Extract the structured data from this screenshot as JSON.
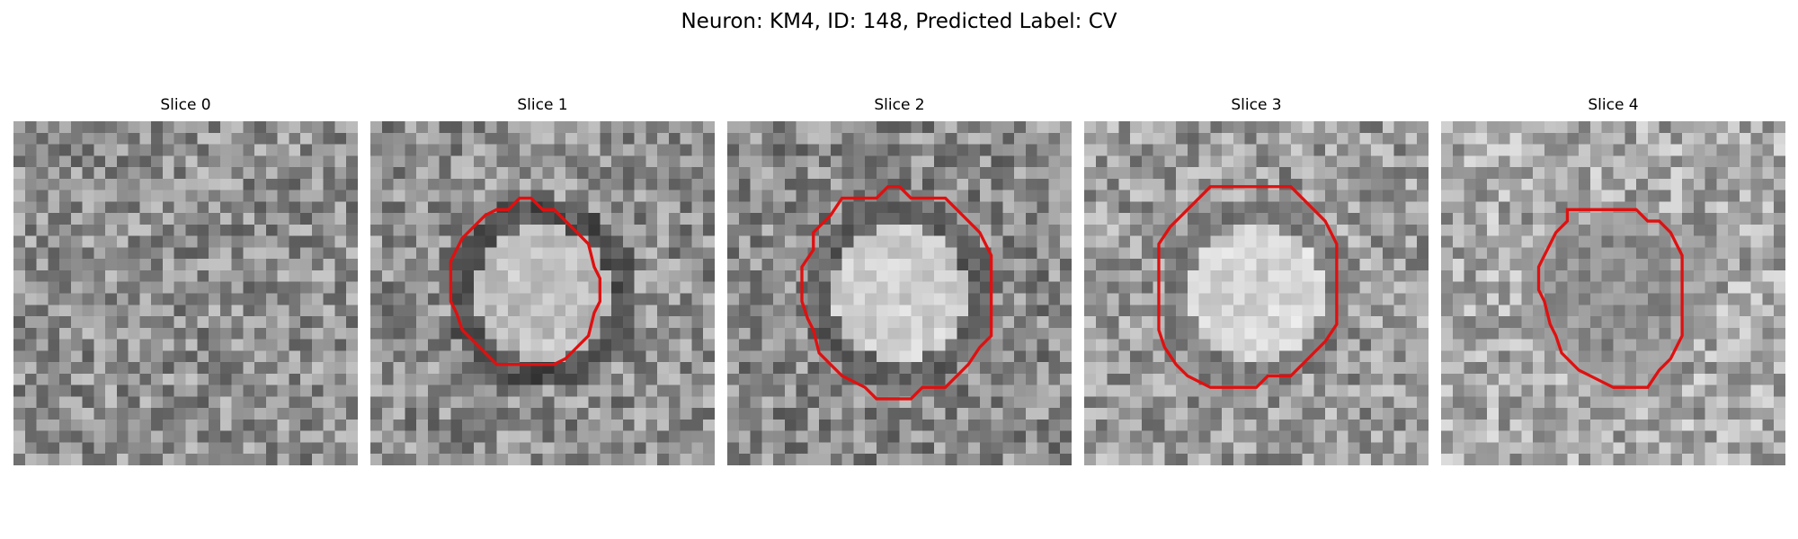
{
  "figure": {
    "title": "Neuron: KM4, ID: 148, Predicted Label: CV"
  },
  "panels": [
    {
      "title": "Slice 0",
      "contour": false,
      "bg": "#8f8f8f",
      "blob_color": "#bdbdbd",
      "ring_color": "#5a5a5a",
      "blob_strength": 0.0
    },
    {
      "title": "Slice 1",
      "contour": true,
      "bg": "#8e8e8e",
      "blob_color": "#c8c8c8",
      "ring_color": "#2a2a2a",
      "blob_strength": 0.85
    },
    {
      "title": "Slice 2",
      "contour": true,
      "bg": "#8a8a8a",
      "blob_color": "#d4d4d4",
      "ring_color": "#4a4a4a",
      "blob_strength": 0.9
    },
    {
      "title": "Slice 3",
      "contour": true,
      "bg": "#9a9a9a",
      "blob_color": "#dcdcdc",
      "ring_color": "#6a6a6a",
      "blob_strength": 0.9
    },
    {
      "title": "Slice 4",
      "contour": true,
      "bg": "#a8a8a8",
      "blob_color": "#7a7a7a",
      "ring_color": "#9a9a9a",
      "blob_strength": 0.5
    }
  ],
  "colors": {
    "contour": "#e01010"
  }
}
